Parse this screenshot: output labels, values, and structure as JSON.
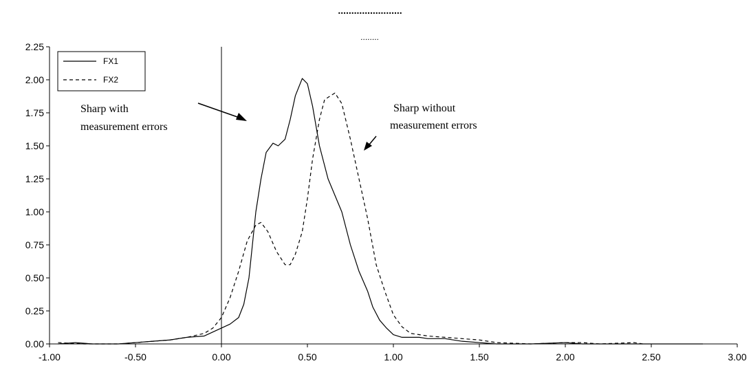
{
  "chart_data": {
    "type": "line",
    "title": "........................",
    "subtitle": "........",
    "xlim": [
      -1.0,
      3.0
    ],
    "ylim": [
      0.0,
      2.25
    ],
    "x_ticks": [
      "-1.00",
      "-0.50",
      "0.00",
      "0.50",
      "1.00",
      "1.50",
      "2.00",
      "2.50",
      "3.00"
    ],
    "y_ticks": [
      "0.00",
      "0.25",
      "0.50",
      "0.75",
      "1.00",
      "1.25",
      "1.50",
      "1.75",
      "2.00",
      "2.25"
    ],
    "vertical_reference_line_x": 0.0,
    "legend": {
      "placement": "top-left"
    },
    "series": [
      {
        "name": "FX1",
        "style": "solid",
        "color": "#000000",
        "points": [
          [
            -0.95,
            0.0
          ],
          [
            -0.85,
            0.01
          ],
          [
            -0.75,
            0.0
          ],
          [
            -0.6,
            0.0
          ],
          [
            -0.5,
            0.01
          ],
          [
            -0.4,
            0.02
          ],
          [
            -0.3,
            0.03
          ],
          [
            -0.2,
            0.05
          ],
          [
            -0.1,
            0.06
          ],
          [
            -0.05,
            0.09
          ],
          [
            0.0,
            0.12
          ],
          [
            0.05,
            0.15
          ],
          [
            0.1,
            0.2
          ],
          [
            0.13,
            0.3
          ],
          [
            0.16,
            0.5
          ],
          [
            0.18,
            0.75
          ],
          [
            0.2,
            1.0
          ],
          [
            0.23,
            1.25
          ],
          [
            0.26,
            1.45
          ],
          [
            0.3,
            1.52
          ],
          [
            0.33,
            1.5
          ],
          [
            0.37,
            1.55
          ],
          [
            0.4,
            1.7
          ],
          [
            0.43,
            1.88
          ],
          [
            0.47,
            2.01
          ],
          [
            0.5,
            1.97
          ],
          [
            0.53,
            1.8
          ],
          [
            0.57,
            1.5
          ],
          [
            0.62,
            1.25
          ],
          [
            0.7,
            1.0
          ],
          [
            0.75,
            0.75
          ],
          [
            0.8,
            0.55
          ],
          [
            0.85,
            0.4
          ],
          [
            0.88,
            0.28
          ],
          [
            0.92,
            0.18
          ],
          [
            0.96,
            0.12
          ],
          [
            1.0,
            0.07
          ],
          [
            1.05,
            0.05
          ],
          [
            1.1,
            0.05
          ],
          [
            1.15,
            0.05
          ],
          [
            1.2,
            0.04
          ],
          [
            1.3,
            0.04
          ],
          [
            1.4,
            0.02
          ],
          [
            1.5,
            0.01
          ],
          [
            1.6,
            0.0
          ],
          [
            1.8,
            0.0
          ],
          [
            2.0,
            0.01
          ],
          [
            2.1,
            0.0
          ],
          [
            2.4,
            0.0
          ],
          [
            2.8,
            0.0
          ]
        ]
      },
      {
        "name": "FX2",
        "style": "dashed",
        "color": "#000000",
        "points": [
          [
            -0.95,
            0.01
          ],
          [
            -0.8,
            0.0
          ],
          [
            -0.6,
            0.0
          ],
          [
            -0.5,
            0.01
          ],
          [
            -0.4,
            0.02
          ],
          [
            -0.3,
            0.03
          ],
          [
            -0.2,
            0.05
          ],
          [
            -0.1,
            0.08
          ],
          [
            -0.05,
            0.12
          ],
          [
            0.0,
            0.2
          ],
          [
            0.05,
            0.35
          ],
          [
            0.1,
            0.55
          ],
          [
            0.15,
            0.78
          ],
          [
            0.2,
            0.9
          ],
          [
            0.23,
            0.92
          ],
          [
            0.27,
            0.85
          ],
          [
            0.32,
            0.7
          ],
          [
            0.37,
            0.6
          ],
          [
            0.4,
            0.6
          ],
          [
            0.43,
            0.68
          ],
          [
            0.47,
            0.85
          ],
          [
            0.5,
            1.1
          ],
          [
            0.53,
            1.4
          ],
          [
            0.57,
            1.7
          ],
          [
            0.6,
            1.85
          ],
          [
            0.66,
            1.9
          ],
          [
            0.7,
            1.82
          ],
          [
            0.75,
            1.55
          ],
          [
            0.8,
            1.25
          ],
          [
            0.85,
            0.95
          ],
          [
            0.9,
            0.6
          ],
          [
            0.95,
            0.4
          ],
          [
            1.0,
            0.22
          ],
          [
            1.05,
            0.13
          ],
          [
            1.1,
            0.08
          ],
          [
            1.2,
            0.06
          ],
          [
            1.3,
            0.05
          ],
          [
            1.4,
            0.04
          ],
          [
            1.5,
            0.03
          ],
          [
            1.6,
            0.01
          ],
          [
            1.8,
            0.0
          ],
          [
            2.0,
            0.01
          ],
          [
            2.1,
            0.01
          ],
          [
            2.2,
            0.0
          ],
          [
            2.4,
            0.01
          ],
          [
            2.45,
            0.0
          ]
        ]
      }
    ],
    "annotations": [
      {
        "id": "with",
        "lines": [
          "Sharp with",
          "measurement errors"
        ],
        "arrow_to": [
          0.16,
          1.75
        ]
      },
      {
        "id": "without",
        "lines": [
          "Sharp without",
          "measurement errors"
        ],
        "arrow_to": [
          0.83,
          1.45
        ]
      }
    ]
  }
}
